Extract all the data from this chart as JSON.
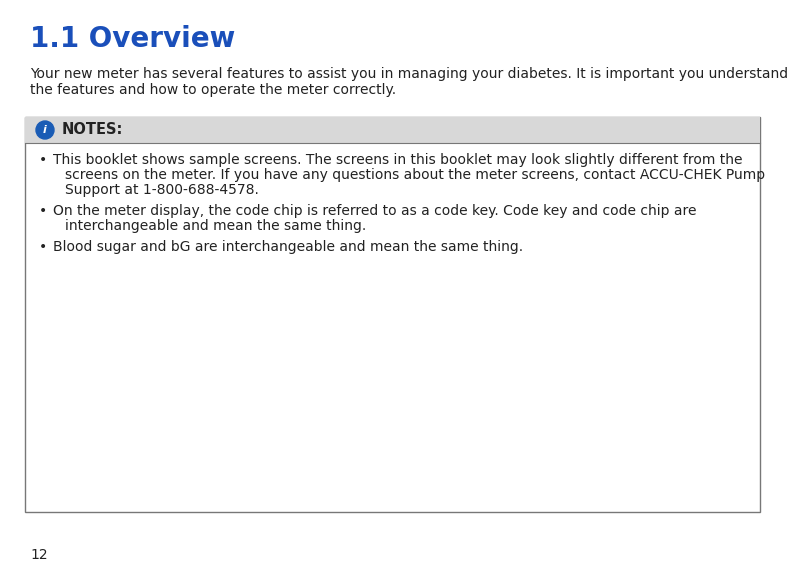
{
  "title": "1.1 Overview",
  "title_color": "#1a4fba",
  "title_fontsize": 20,
  "body_text_line1": "Your new meter has several features to assist you in managing your diabetes. It is important you understand",
  "body_text_line2": "the features and how to operate the meter correctly.",
  "body_fontsize": 10,
  "body_color": "#222222",
  "notes_header": "NOTES:",
  "notes_header_fontsize": 10.5,
  "notes_header_color": "#222222",
  "notes_header_bg": "#d8d8d8",
  "notes_box_border": "#777777",
  "notes_box_bg": "#ffffff",
  "bullet1_line1": "This booklet shows sample screens. The screens in this booklet may look slightly different from the",
  "bullet1_line2": "screens on the meter. If you have any questions about the meter screens, contact ACCU-CHEK Pump",
  "bullet1_line3": "Support at 1-800-688-4578.",
  "bullet2_line1": "On the meter display, the code chip is referred to as a code key. Code key and code chip are",
  "bullet2_line2": "interchangeable and mean the same thing.",
  "bullet3_line1": "Blood sugar and bG are interchangeable and mean the same thing.",
  "bullet_fontsize": 10,
  "bullet_color": "#222222",
  "page_number": "12",
  "page_number_fontsize": 10,
  "bg_color": "#ffffff",
  "info_icon_color": "#1a5cb5"
}
